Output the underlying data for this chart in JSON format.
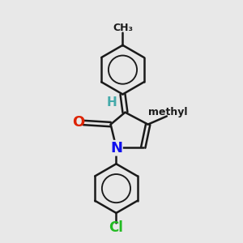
{
  "background_color": "#e8e8e8",
  "bond_color": "#1a1a1a",
  "bond_width": 1.8,
  "atoms": {
    "O": {
      "color": "#dd2200",
      "fontsize": 13,
      "fontweight": "bold"
    },
    "N": {
      "color": "#1111ee",
      "fontsize": 13,
      "fontweight": "bold"
    },
    "Cl": {
      "color": "#22bb22",
      "fontsize": 12,
      "fontweight": "bold"
    },
    "H": {
      "color": "#44aaaa",
      "fontsize": 11,
      "fontweight": "bold"
    },
    "CH3": {
      "color": "#1a1a1a",
      "fontsize": 9,
      "fontweight": "bold"
    },
    "methyl": {
      "color": "#1a1a1a",
      "fontsize": 9,
      "fontweight": "bold"
    }
  },
  "figsize": [
    3.0,
    3.0
  ],
  "dpi": 100
}
